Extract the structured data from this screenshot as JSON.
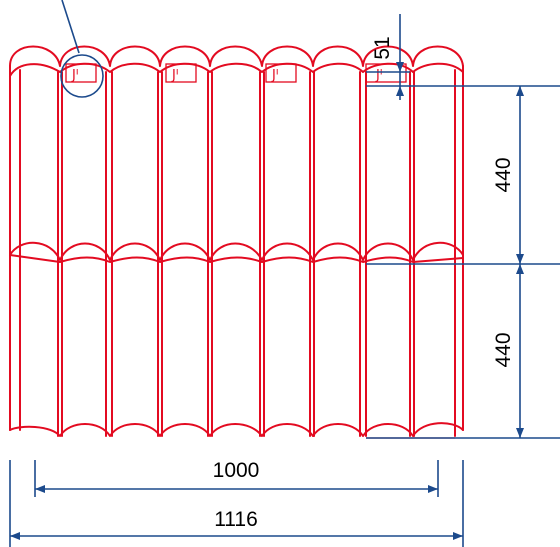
{
  "dimensions": {
    "top_step": "51",
    "upper_row": "440",
    "lower_row": "440",
    "effective_width": "1000",
    "total_width": "1116"
  },
  "clips": {
    "symbol": "Jᑊ",
    "count": 4
  },
  "colors": {
    "tile_outline": "#e30b21",
    "dimension_lines": "#1c4a8c",
    "text": "#000000"
  },
  "tile": {
    "waves": 9,
    "rows": 2
  },
  "annotations": {
    "detail_circle_icon": "magnifier-callout-icon"
  }
}
